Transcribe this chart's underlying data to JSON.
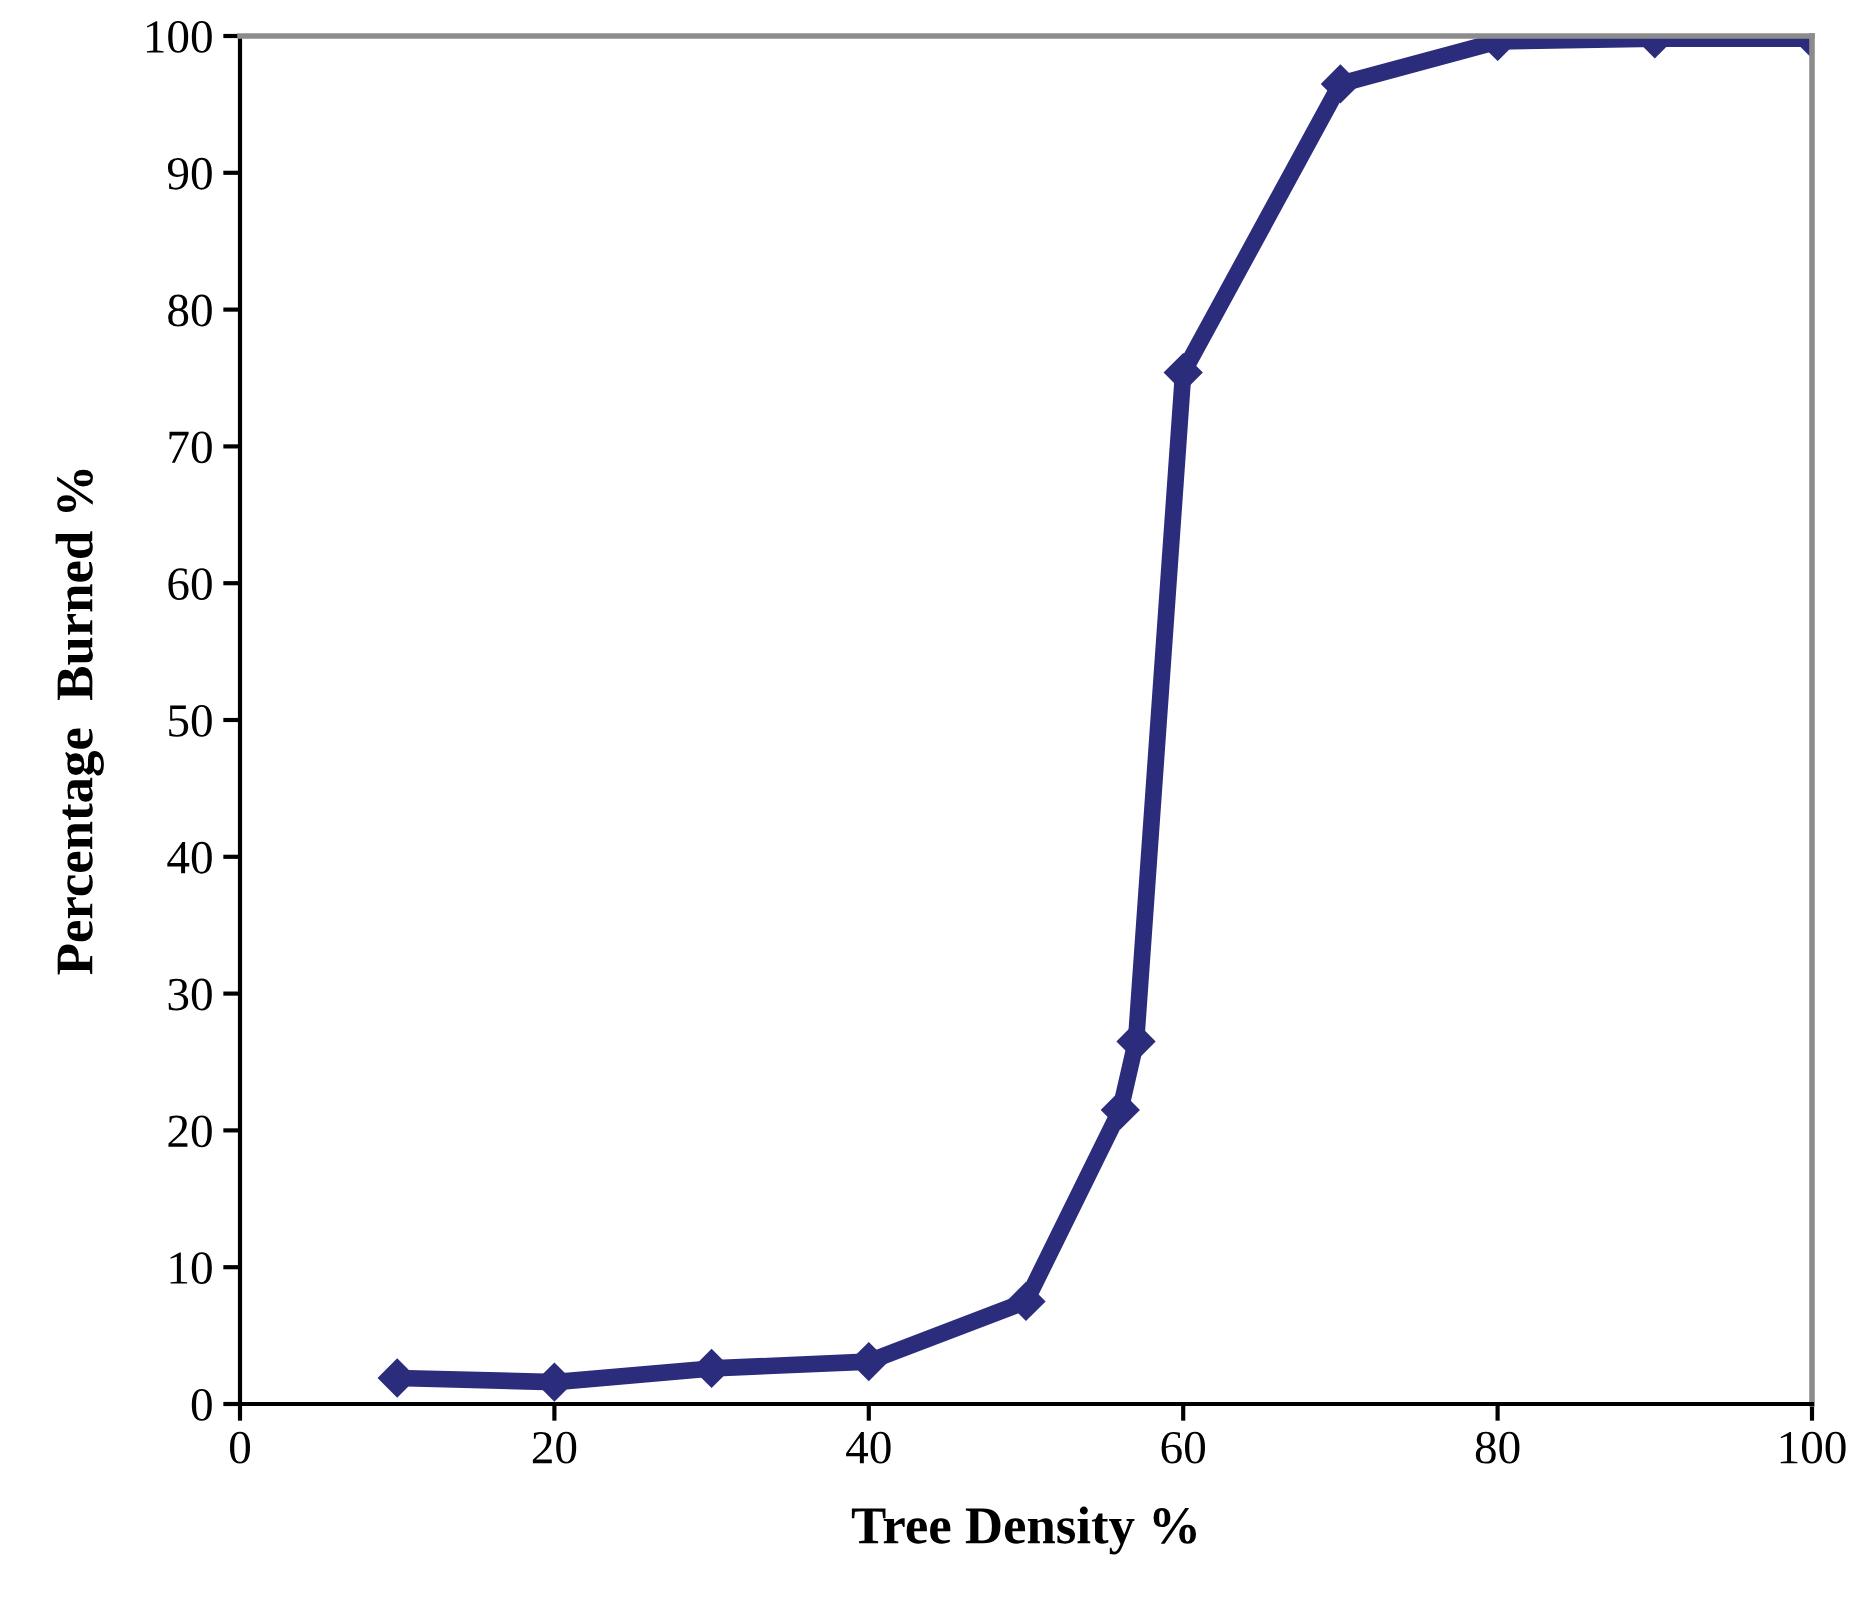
{
  "chart_data": {
    "type": "line",
    "xlabel": "Tree Density %",
    "ylabel": "Percentage  Burned %",
    "xlim": [
      0,
      100
    ],
    "xticks": [
      0,
      20,
      40,
      60,
      80,
      100
    ],
    "ylim": [
      0,
      100
    ],
    "yticks": [
      0,
      10,
      20,
      30,
      40,
      50,
      60,
      70,
      80,
      90,
      100
    ],
    "grid": false,
    "legend": false,
    "marker": "diamond",
    "line_style": "solid",
    "series": [
      {
        "color": "#2b2c7c",
        "x": [
          10,
          20,
          30,
          40,
          50,
          56,
          57,
          60,
          70,
          80,
          90,
          100
        ],
        "values": [
          1.9,
          1.6,
          2.6,
          3.1,
          7.5,
          21.5,
          26.5,
          75.4,
          96.5,
          99.6,
          99.8,
          99.8
        ]
      }
    ]
  }
}
